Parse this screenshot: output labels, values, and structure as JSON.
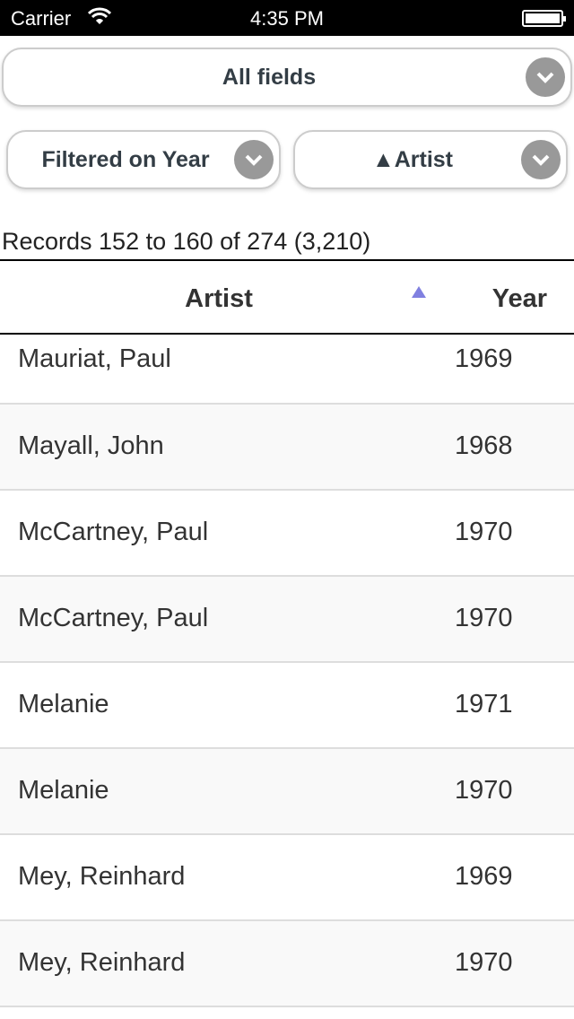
{
  "status_bar": {
    "carrier": "Carrier",
    "time": "4:35 PM"
  },
  "controls": {
    "field_select": "All fields",
    "filter_select": "Filtered on Year",
    "sort_select": "▲Artist"
  },
  "records_summary": "Records 152 to 160 of 274 (3,210)",
  "table": {
    "columns": [
      "Artist",
      "Year"
    ],
    "sort_indicator_color": "#8080e0",
    "rows": [
      {
        "artist": "Mauriat, Paul",
        "year": "1969"
      },
      {
        "artist": "Mayall, John",
        "year": "1968"
      },
      {
        "artist": "McCartney, Paul",
        "year": "1970"
      },
      {
        "artist": "McCartney, Paul",
        "year": "1970"
      },
      {
        "artist": "Melanie",
        "year": "1971"
      },
      {
        "artist": "Melanie",
        "year": "1970"
      },
      {
        "artist": "Mey, Reinhard",
        "year": "1969"
      },
      {
        "artist": "Mey, Reinhard",
        "year": "1970"
      },
      {
        "artist": "",
        "year": ""
      }
    ]
  }
}
